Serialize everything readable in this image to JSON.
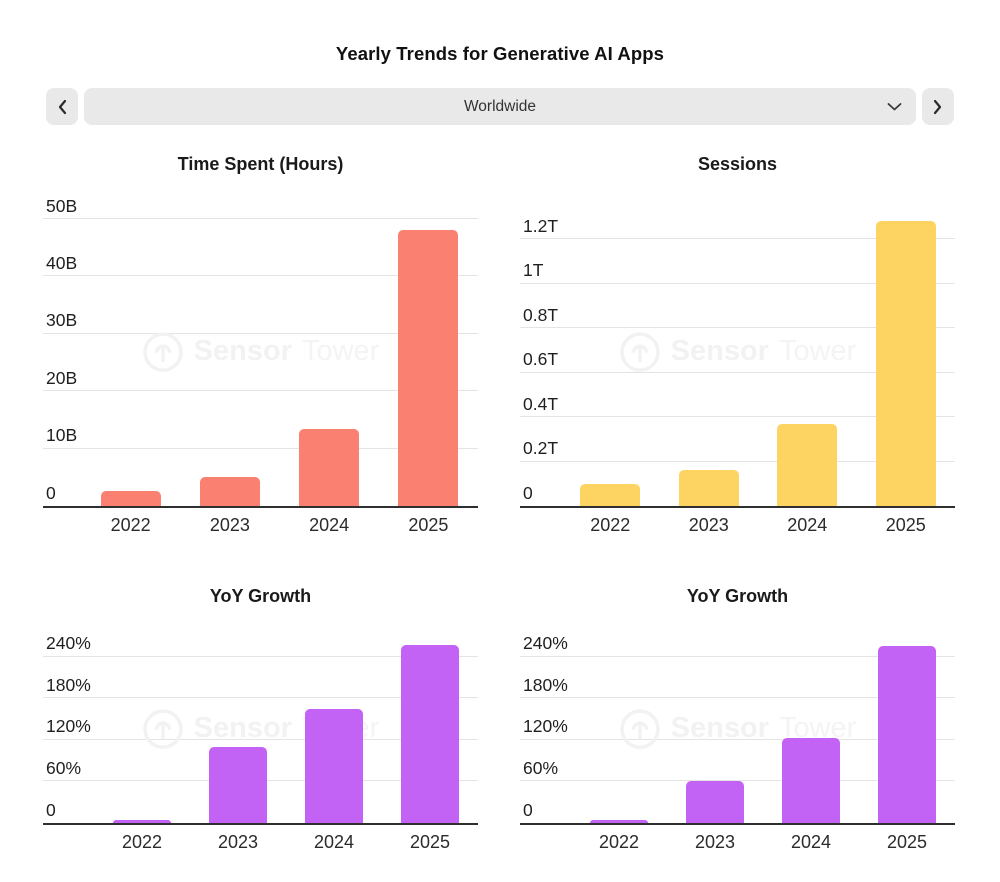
{
  "header": {
    "title": "Yearly Trends for Generative AI Apps"
  },
  "controls": {
    "region_selected": "Worldwide",
    "prev_icon": "chevron-left",
    "next_icon": "chevron-right",
    "dropdown_icon": "chevron-down"
  },
  "watermark": {
    "brand_bold": "Sensor",
    "brand_light": "Tower"
  },
  "colors": {
    "time_spent_bar": "#fa8072",
    "sessions_bar": "#fdd462",
    "growth_bar": "#c263f5",
    "gridline": "#e4e4e4",
    "axis": "#2f2f2f",
    "control_bg": "#e9e9e9"
  },
  "chart_data": [
    {
      "type": "bar",
      "title": "Time Spent (Hours)",
      "categories": [
        "2022",
        "2023",
        "2024",
        "2025"
      ],
      "values": [
        2.6,
        5,
        13.5,
        48
      ],
      "unit": "B",
      "ylim": [
        0,
        50
      ],
      "yticks": [
        {
          "label": "0",
          "value": 0
        },
        {
          "label": "10B",
          "value": 10
        },
        {
          "label": "20B",
          "value": 20
        },
        {
          "label": "30B",
          "value": 30
        },
        {
          "label": "40B",
          "value": 40
        },
        {
          "label": "50B",
          "value": 50
        }
      ],
      "color": "#fa8072",
      "grid": "horizontal",
      "legend": "none"
    },
    {
      "type": "bar",
      "title": "Sessions",
      "categories": [
        "2022",
        "2023",
        "2024",
        "2025"
      ],
      "values": [
        0.1,
        0.16,
        0.37,
        1.28
      ],
      "unit": "T",
      "ylim": [
        0,
        1.2
      ],
      "yticks": [
        {
          "label": "0",
          "value": 0
        },
        {
          "label": "0.2T",
          "value": 0.2
        },
        {
          "label": "0.4T",
          "value": 0.4
        },
        {
          "label": "0.6T",
          "value": 0.6
        },
        {
          "label": "0.8T",
          "value": 0.8
        },
        {
          "label": "1T",
          "value": 1
        },
        {
          "label": "1.2T",
          "value": 1.2
        }
      ],
      "color": "#fdd462",
      "grid": "horizontal",
      "legend": "none"
    },
    {
      "type": "bar",
      "title": "YoY Growth",
      "categories": [
        "2022",
        "2023",
        "2024",
        "2025"
      ],
      "values": [
        4,
        110,
        165,
        257
      ],
      "unit": "%",
      "ylim": [
        0,
        240
      ],
      "yticks": [
        {
          "label": "0",
          "value": 0
        },
        {
          "label": "60%",
          "value": 60
        },
        {
          "label": "120%",
          "value": 120
        },
        {
          "label": "180%",
          "value": 180
        },
        {
          "label": "240%",
          "value": 240
        }
      ],
      "color": "#c263f5",
      "grid": "horizontal",
      "legend": "none"
    },
    {
      "type": "bar",
      "title": "YoY Growth",
      "categories": [
        "2022",
        "2023",
        "2024",
        "2025"
      ],
      "values": [
        4,
        60,
        122,
        255
      ],
      "unit": "%",
      "ylim": [
        0,
        240
      ],
      "yticks": [
        {
          "label": "0",
          "value": 0
        },
        {
          "label": "60%",
          "value": 60
        },
        {
          "label": "120%",
          "value": 120
        },
        {
          "label": "180%",
          "value": 180
        },
        {
          "label": "240%",
          "value": 240
        }
      ],
      "color": "#c263f5",
      "grid": "horizontal",
      "legend": "none"
    }
  ]
}
